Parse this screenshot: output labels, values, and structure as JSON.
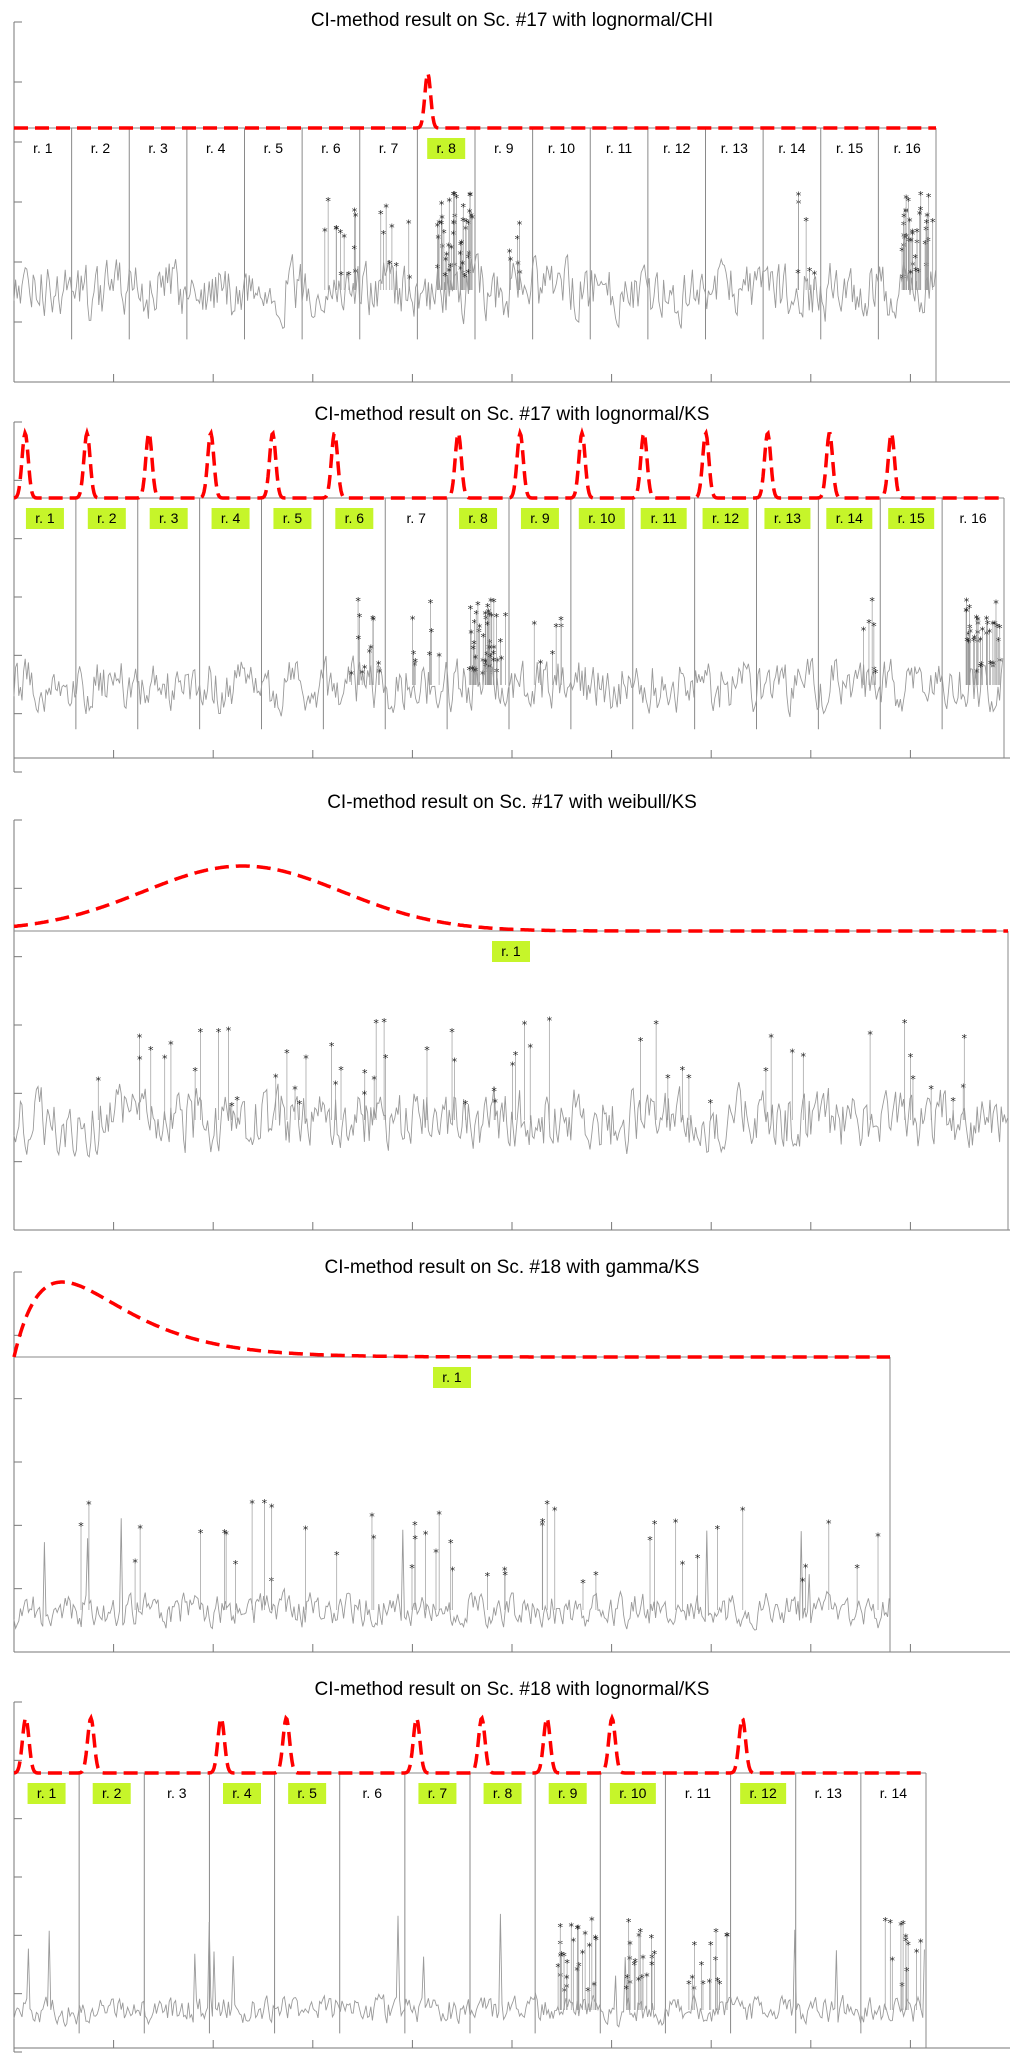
{
  "colors": {
    "distribution_curve": "#ff0000",
    "signal": "#9a9a9a",
    "highlight": "#c6f52a",
    "divider": "#8a8a8a",
    "marker": "#1a1a1a"
  },
  "chart_data": [
    {
      "type": "line",
      "title": "CI-method result on Sc. #17 with lognormal/CHI",
      "xlabel": "",
      "ylabel": "",
      "grid": false,
      "regions": [
        "r. 1",
        "r. 2",
        "r. 3",
        "r. 4",
        "r. 5",
        "r. 6",
        "r. 7",
        "r. 8",
        "r. 9",
        "r. 10",
        "r. 11",
        "r. 12",
        "r. 13",
        "r. 14",
        "r. 15",
        "r. 16"
      ],
      "highlighted_regions": [
        "r. 8"
      ],
      "curve_peaks": [
        "r. 8"
      ],
      "anomaly_regions": [
        "r. 6",
        "r. 7",
        "r. 8",
        "r. 9",
        "r. 14",
        "r. 16"
      ]
    },
    {
      "type": "line",
      "title": "CI-method result on Sc. #17 with lognormal/KS",
      "xlabel": "",
      "ylabel": "",
      "grid": false,
      "regions": [
        "r. 1",
        "r. 2",
        "r. 3",
        "r. 4",
        "r. 5",
        "r. 6",
        "r. 7",
        "r. 8",
        "r. 9",
        "r. 10",
        "r. 11",
        "r. 12",
        "r. 13",
        "r. 14",
        "r. 15",
        "r. 16"
      ],
      "highlighted_regions": [
        "r. 1",
        "r. 2",
        "r. 3",
        "r. 4",
        "r. 5",
        "r. 6",
        "r. 8",
        "r. 9",
        "r. 10",
        "r. 11",
        "r. 12",
        "r. 13",
        "r. 14",
        "r. 15"
      ],
      "curve_peaks": [
        "r. 1",
        "r. 2",
        "r. 3",
        "r. 4",
        "r. 5",
        "r. 6",
        "r. 8",
        "r. 9",
        "r. 10",
        "r. 11",
        "r. 12",
        "r. 13",
        "r. 14",
        "r. 15"
      ],
      "anomaly_regions": [
        "r. 6",
        "r. 7",
        "r. 8",
        "r. 9",
        "r. 14",
        "r. 16"
      ]
    },
    {
      "type": "line",
      "title": "CI-method result on Sc. #17 with weibull/KS",
      "xlabel": "",
      "ylabel": "",
      "grid": false,
      "regions": [
        "r. 1"
      ],
      "highlighted_regions": [
        "r. 1"
      ],
      "curve_peaks": [
        "r. 1"
      ],
      "anomaly_regions": [
        "r. 1"
      ]
    },
    {
      "type": "line",
      "title": "CI-method result on Sc. #18 with gamma/KS",
      "xlabel": "",
      "ylabel": "",
      "grid": false,
      "regions": [
        "r. 1"
      ],
      "highlighted_regions": [
        "r. 1"
      ],
      "curve_peaks": [
        "r. 1"
      ],
      "anomaly_regions": [
        "r. 1"
      ]
    },
    {
      "type": "line",
      "title": "CI-method result on Sc. #18 with lognormal/KS",
      "xlabel": "",
      "ylabel": "",
      "grid": false,
      "regions": [
        "r. 1",
        "r. 2",
        "r. 3",
        "r. 4",
        "r. 5",
        "r. 6",
        "r. 7",
        "r. 8",
        "r. 9",
        "r. 10",
        "r. 11",
        "r. 12",
        "r. 13",
        "r. 14"
      ],
      "highlighted_regions": [
        "r. 1",
        "r. 2",
        "r. 4",
        "r. 5",
        "r. 7",
        "r. 8",
        "r. 9",
        "r. 10",
        "r. 12"
      ],
      "curve_peaks": [
        "r. 1",
        "r. 2",
        "r. 4",
        "r. 5",
        "r. 7",
        "r. 8",
        "r. 9",
        "r. 10",
        "r. 12"
      ],
      "anomaly_regions": [
        "r. 9",
        "r. 10",
        "r. 11",
        "r. 14"
      ]
    }
  ]
}
